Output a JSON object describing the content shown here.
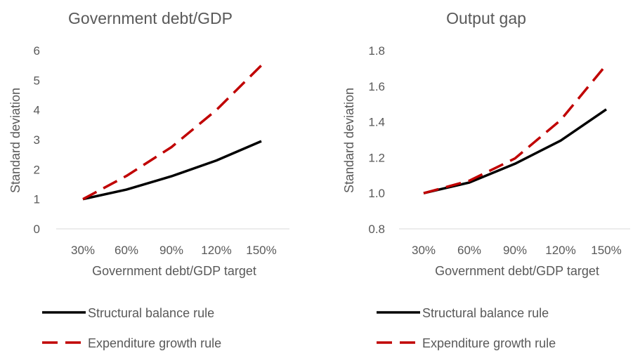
{
  "chart_data": [
    {
      "type": "line",
      "title": "Government debt/GDP",
      "xlabel": "Government debt/GDP target",
      "ylabel": "Standard deviation",
      "categories": [
        "30%",
        "60%",
        "90%",
        "120%",
        "150%"
      ],
      "ylim": [
        0,
        6
      ],
      "yticks": [
        "0",
        "1",
        "2",
        "3",
        "4",
        "5",
        "6"
      ],
      "grid": false,
      "legend": "bottom",
      "series": [
        {
          "name": "Structural balance rule",
          "values": [
            1.0,
            1.32,
            1.77,
            2.3,
            2.95
          ],
          "color": "#000000",
          "dash": "solid"
        },
        {
          "name": "Expenditure growth rule",
          "values": [
            1.0,
            1.78,
            2.75,
            4.0,
            5.5
          ],
          "color": "#c00000",
          "dash": "dashed"
        }
      ]
    },
    {
      "type": "line",
      "title": "Output gap",
      "xlabel": "Government debt/GDP target",
      "ylabel": "Standard deviation",
      "categories": [
        "30%",
        "60%",
        "90%",
        "120%",
        "150%"
      ],
      "ylim": [
        0.8,
        1.8
      ],
      "yticks": [
        "0.8",
        "1.0",
        "1.2",
        "1.4",
        "1.6",
        "1.8"
      ],
      "grid": false,
      "legend": "bottom",
      "series": [
        {
          "name": "Structural balance rule",
          "values": [
            1.0,
            1.06,
            1.165,
            1.295,
            1.47
          ],
          "color": "#000000",
          "dash": "solid"
        },
        {
          "name": "Expenditure growth rule",
          "values": [
            1.0,
            1.07,
            1.195,
            1.41,
            1.72
          ],
          "color": "#c00000",
          "dash": "dashed"
        }
      ]
    }
  ]
}
